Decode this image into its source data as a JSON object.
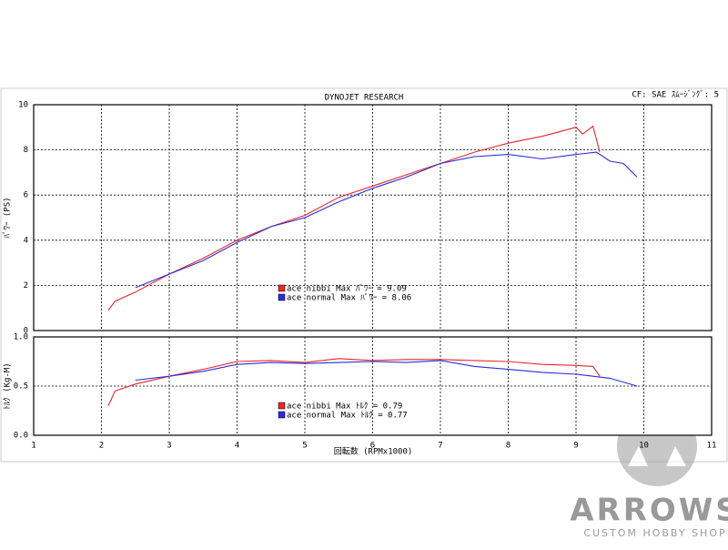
{
  "chart_data": [
    {
      "type": "line",
      "title": "DYNOJET RESEARCH",
      "subtitle": "CF: SAE  ｽﾑｰｼﾞﾝｸﾞ: 5",
      "ylabel": "ﾊﾟﾜｰ (PS)",
      "xlim": [
        1,
        11
      ],
      "xticks": [
        1,
        2,
        3,
        4,
        5,
        6,
        7,
        8,
        9,
        10,
        11
      ],
      "ylim": [
        0,
        10
      ],
      "yticks": [
        0,
        2,
        4,
        6,
        8,
        10
      ],
      "grid": true,
      "series": [
        {
          "name": "ace nibbi Max ﾊﾟﾜｰ = 9.09",
          "color": "#e8262a",
          "x": [
            2.1,
            2.2,
            2.5,
            3,
            3.5,
            4,
            4.5,
            5,
            5.5,
            6,
            6.5,
            7,
            7.5,
            8,
            8.5,
            9,
            9.1,
            9.25,
            9.35
          ],
          "values": [
            0.9,
            1.3,
            1.7,
            2.5,
            3.2,
            4.0,
            4.6,
            5.1,
            5.9,
            6.4,
            6.9,
            7.4,
            7.9,
            8.3,
            8.6,
            9.0,
            8.7,
            9.05,
            7.9
          ]
        },
        {
          "name": "ace normal Max ﾊﾟﾜｰ = 8.06",
          "color": "#2b2be0",
          "x": [
            2.5,
            3,
            3.5,
            4,
            4.5,
            5,
            5.5,
            6,
            6.5,
            7,
            7.5,
            8,
            8.5,
            9,
            9.3,
            9.5,
            9.7,
            9.9
          ],
          "values": [
            1.9,
            2.5,
            3.1,
            3.9,
            4.6,
            5.0,
            5.7,
            6.3,
            6.8,
            7.4,
            7.7,
            7.8,
            7.6,
            7.8,
            7.9,
            7.5,
            7.4,
            6.8
          ]
        }
      ]
    },
    {
      "type": "line",
      "ylabel": "ﾄﾙｸ (Kg-M)",
      "xlabel": "回転数 (RPMx1000)",
      "xlim": [
        1,
        11
      ],
      "xticks": [
        1,
        2,
        3,
        4,
        5,
        6,
        7,
        8,
        9,
        10,
        11
      ],
      "ylim": [
        0,
        1
      ],
      "yticks": [
        {
          "value": 0,
          "label": "0.0"
        },
        {
          "value": 0.5,
          "label": "0.5"
        },
        {
          "value": 1,
          "label": "1.0"
        }
      ],
      "grid": true,
      "series": [
        {
          "name": "ace nibbi Max ﾄﾙｸ = 0.79",
          "color": "#e8262a",
          "x": [
            2.1,
            2.2,
            2.5,
            3,
            3.5,
            4,
            4.5,
            5,
            5.5,
            6,
            6.5,
            7,
            7.5,
            8,
            8.5,
            9,
            9.25,
            9.35
          ],
          "values": [
            0.3,
            0.45,
            0.52,
            0.6,
            0.67,
            0.75,
            0.76,
            0.74,
            0.78,
            0.76,
            0.77,
            0.77,
            0.76,
            0.75,
            0.72,
            0.71,
            0.7,
            0.6
          ]
        },
        {
          "name": "ace normal Max ﾄﾙｸ = 0.77",
          "color": "#2b2be0",
          "x": [
            2.5,
            3,
            3.5,
            4,
            4.5,
            5,
            5.5,
            6,
            6.5,
            7,
            7.5,
            8,
            8.5,
            9,
            9.5,
            9.9
          ],
          "values": [
            0.56,
            0.6,
            0.65,
            0.72,
            0.74,
            0.73,
            0.74,
            0.75,
            0.74,
            0.76,
            0.7,
            0.67,
            0.64,
            0.62,
            0.58,
            0.5
          ]
        }
      ]
    }
  ],
  "watermark": {
    "title": "ARROWS",
    "subtitle": "CUSTOM HOBBY SHOP"
  }
}
